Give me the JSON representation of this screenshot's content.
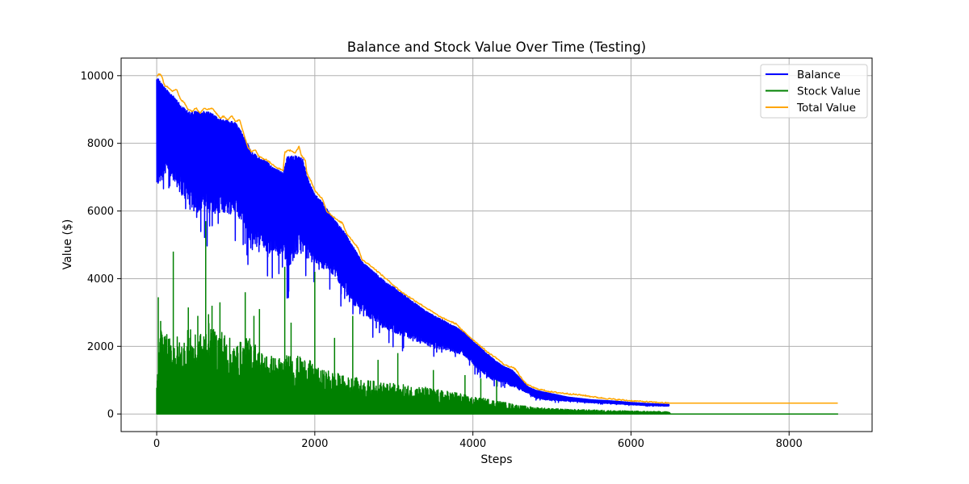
{
  "chart_data": {
    "type": "line",
    "title": "Balance and Stock Value Over Time (Testing)",
    "xlabel": "Steps",
    "ylabel": "Value ($)",
    "xlim": [
      -450,
      9050
    ],
    "ylim": [
      -520,
      10520
    ],
    "x_ticks": [
      0,
      2000,
      4000,
      6000,
      8000
    ],
    "y_ticks": [
      0,
      2000,
      4000,
      6000,
      8000,
      10000
    ],
    "grid": true,
    "legend_position": "top-right",
    "series": [
      {
        "name": "Balance",
        "color": "#0000ff",
        "x_end": 6480,
        "upper": [
          [
            0,
            10000
          ],
          [
            100,
            9650
          ],
          [
            200,
            9450
          ],
          [
            300,
            9150
          ],
          [
            400,
            8950
          ],
          [
            500,
            8950
          ],
          [
            600,
            8950
          ],
          [
            700,
            8900
          ],
          [
            800,
            8750
          ],
          [
            900,
            8700
          ],
          [
            1000,
            8600
          ],
          [
            1100,
            8250
          ],
          [
            1200,
            7750
          ],
          [
            1300,
            7600
          ],
          [
            1400,
            7450
          ],
          [
            1500,
            7250
          ],
          [
            1600,
            7150
          ],
          [
            1650,
            7600
          ],
          [
            1750,
            7650
          ],
          [
            1850,
            7550
          ],
          [
            1900,
            7050
          ],
          [
            2000,
            6500
          ],
          [
            2100,
            6250
          ],
          [
            2200,
            5900
          ],
          [
            2300,
            5600
          ],
          [
            2400,
            5300
          ],
          [
            2500,
            4900
          ],
          [
            2600,
            4500
          ],
          [
            2700,
            4300
          ],
          [
            2800,
            4100
          ],
          [
            2900,
            3900
          ],
          [
            3000,
            3750
          ],
          [
            3200,
            3400
          ],
          [
            3400,
            3050
          ],
          [
            3600,
            2800
          ],
          [
            3800,
            2550
          ],
          [
            3900,
            2400
          ],
          [
            4000,
            2150
          ],
          [
            4100,
            1950
          ],
          [
            4200,
            1750
          ],
          [
            4300,
            1550
          ],
          [
            4400,
            1400
          ],
          [
            4500,
            1300
          ],
          [
            4600,
            1050
          ],
          [
            4700,
            800
          ],
          [
            4800,
            700
          ],
          [
            5000,
            600
          ],
          [
            5200,
            500
          ],
          [
            5500,
            420
          ],
          [
            5800,
            380
          ],
          [
            6000,
            340
          ],
          [
            6200,
            310
          ],
          [
            6480,
            280
          ]
        ],
        "lower": [
          [
            0,
            6600
          ],
          [
            100,
            7000
          ],
          [
            200,
            6950
          ],
          [
            300,
            6500
          ],
          [
            400,
            6200
          ],
          [
            500,
            5950
          ],
          [
            600,
            6000
          ],
          [
            700,
            5900
          ],
          [
            800,
            5950
          ],
          [
            900,
            5900
          ],
          [
            1000,
            5950
          ],
          [
            1100,
            5600
          ],
          [
            1200,
            4800
          ],
          [
            1300,
            5000
          ],
          [
            1400,
            4600
          ],
          [
            1500,
            4600
          ],
          [
            1600,
            4800
          ],
          [
            1650,
            4300
          ],
          [
            1750,
            4600
          ],
          [
            1850,
            4800
          ],
          [
            1900,
            4600
          ],
          [
            2000,
            4450
          ],
          [
            2100,
            4300
          ],
          [
            2200,
            4200
          ],
          [
            2300,
            3900
          ],
          [
            2400,
            3500
          ],
          [
            2500,
            3200
          ],
          [
            2600,
            3000
          ],
          [
            2700,
            2800
          ],
          [
            2800,
            2700
          ],
          [
            2900,
            2500
          ],
          [
            3000,
            2400
          ],
          [
            3200,
            2200
          ],
          [
            3400,
            2000
          ],
          [
            3600,
            1900
          ],
          [
            3800,
            1800
          ],
          [
            3900,
            1700
          ],
          [
            4000,
            1450
          ],
          [
            4100,
            1250
          ],
          [
            4200,
            1050
          ],
          [
            4300,
            950
          ],
          [
            4400,
            900
          ],
          [
            4500,
            800
          ],
          [
            4600,
            700
          ],
          [
            4700,
            600
          ],
          [
            4800,
            450
          ],
          [
            5000,
            400
          ],
          [
            5200,
            380
          ],
          [
            5500,
            330
          ],
          [
            5800,
            300
          ],
          [
            6000,
            270
          ],
          [
            6200,
            250
          ],
          [
            6480,
            230
          ]
        ]
      },
      {
        "name": "Stock Value",
        "color": "#008000",
        "x_end": 8620,
        "upper": [
          [
            0,
            900
          ],
          [
            50,
            2600
          ],
          [
            100,
            2400
          ],
          [
            200,
            2200
          ],
          [
            250,
            2400
          ],
          [
            300,
            2100
          ],
          [
            400,
            2600
          ],
          [
            500,
            2300
          ],
          [
            600,
            2500
          ],
          [
            650,
            3000
          ],
          [
            700,
            2500
          ],
          [
            800,
            2600
          ],
          [
            900,
            2300
          ],
          [
            1000,
            2100
          ],
          [
            1100,
            2200
          ],
          [
            1200,
            2300
          ],
          [
            1300,
            1900
          ],
          [
            1400,
            1800
          ],
          [
            1500,
            1700
          ],
          [
            1600,
            1700
          ],
          [
            1700,
            1800
          ],
          [
            1800,
            1700
          ],
          [
            1900,
            1700
          ],
          [
            2000,
            1400
          ],
          [
            2100,
            1300
          ],
          [
            2200,
            1300
          ],
          [
            2300,
            1200
          ],
          [
            2400,
            1100
          ],
          [
            2500,
            1100
          ],
          [
            2600,
            1000
          ],
          [
            2700,
            1000
          ],
          [
            2800,
            950
          ],
          [
            3000,
            900
          ],
          [
            3200,
            850
          ],
          [
            3400,
            800
          ],
          [
            3600,
            700
          ],
          [
            3800,
            650
          ],
          [
            4000,
            500
          ],
          [
            4200,
            450
          ],
          [
            4400,
            350
          ],
          [
            4600,
            250
          ],
          [
            4800,
            200
          ],
          [
            5000,
            160
          ],
          [
            5200,
            140
          ],
          [
            5500,
            120
          ],
          [
            5800,
            100
          ],
          [
            6000,
            90
          ],
          [
            6200,
            80
          ],
          [
            6480,
            70
          ],
          [
            6500,
            0
          ]
        ],
        "spikes": [
          [
            20,
            3450
          ],
          [
            50,
            2750
          ],
          [
            210,
            4800
          ],
          [
            400,
            3150
          ],
          [
            520,
            2900
          ],
          [
            620,
            5700
          ],
          [
            700,
            3200
          ],
          [
            800,
            3300
          ],
          [
            1120,
            3600
          ],
          [
            1230,
            2900
          ],
          [
            1300,
            3100
          ],
          [
            1620,
            4350
          ],
          [
            1700,
            2700
          ],
          [
            2000,
            4200
          ],
          [
            2250,
            2250
          ],
          [
            2480,
            2900
          ],
          [
            2800,
            1600
          ],
          [
            3050,
            1800
          ],
          [
            3500,
            1300
          ],
          [
            3900,
            1150
          ],
          [
            4100,
            1050
          ],
          [
            4300,
            1000
          ]
        ]
      },
      {
        "name": "Total Value",
        "color": "#ffa500",
        "x_end": 8620,
        "points": [
          [
            0,
            10000
          ],
          [
            30,
            10050
          ],
          [
            60,
            10020
          ],
          [
            100,
            9700
          ],
          [
            150,
            9650
          ],
          [
            200,
            9550
          ],
          [
            250,
            9600
          ],
          [
            300,
            9300
          ],
          [
            350,
            9200
          ],
          [
            400,
            9000
          ],
          [
            450,
            8950
          ],
          [
            500,
            9050
          ],
          [
            550,
            8900
          ],
          [
            600,
            9050
          ],
          [
            650,
            9000
          ],
          [
            700,
            9050
          ],
          [
            750,
            8900
          ],
          [
            800,
            8750
          ],
          [
            850,
            8800
          ],
          [
            900,
            8700
          ],
          [
            950,
            8800
          ],
          [
            1000,
            8650
          ],
          [
            1050,
            8700
          ],
          [
            1100,
            8300
          ],
          [
            1150,
            7900
          ],
          [
            1200,
            7750
          ],
          [
            1250,
            7800
          ],
          [
            1300,
            7600
          ],
          [
            1400,
            7500
          ],
          [
            1500,
            7300
          ],
          [
            1600,
            7200
          ],
          [
            1620,
            7750
          ],
          [
            1700,
            7800
          ],
          [
            1750,
            7700
          ],
          [
            1800,
            7900
          ],
          [
            1830,
            7650
          ],
          [
            1880,
            7500
          ],
          [
            1900,
            7100
          ],
          [
            1950,
            6900
          ],
          [
            2000,
            6600
          ],
          [
            2100,
            6350
          ],
          [
            2150,
            6000
          ],
          [
            2200,
            5900
          ],
          [
            2300,
            5700
          ],
          [
            2350,
            5650
          ],
          [
            2400,
            5350
          ],
          [
            2500,
            5050
          ],
          [
            2550,
            4900
          ],
          [
            2600,
            4550
          ],
          [
            2700,
            4400
          ],
          [
            2800,
            4200
          ],
          [
            2900,
            4000
          ],
          [
            3000,
            3800
          ],
          [
            3100,
            3600
          ],
          [
            3200,
            3450
          ],
          [
            3300,
            3300
          ],
          [
            3400,
            3150
          ],
          [
            3500,
            3000
          ],
          [
            3600,
            2850
          ],
          [
            3700,
            2750
          ],
          [
            3800,
            2650
          ],
          [
            3850,
            2500
          ],
          [
            3900,
            2400
          ],
          [
            4000,
            2200
          ],
          [
            4100,
            2000
          ],
          [
            4200,
            1800
          ],
          [
            4300,
            1650
          ],
          [
            4400,
            1450
          ],
          [
            4500,
            1380
          ],
          [
            4550,
            1300
          ],
          [
            4600,
            1100
          ],
          [
            4650,
            950
          ],
          [
            4700,
            850
          ],
          [
            4800,
            750
          ],
          [
            4900,
            700
          ],
          [
            5000,
            650
          ],
          [
            5200,
            600
          ],
          [
            5400,
            550
          ],
          [
            5600,
            480
          ],
          [
            5800,
            430
          ],
          [
            6000,
            390
          ],
          [
            6200,
            360
          ],
          [
            6400,
            330
          ],
          [
            6480,
            320
          ],
          [
            7000,
            320
          ],
          [
            8000,
            320
          ],
          [
            8620,
            320
          ]
        ]
      }
    ]
  }
}
